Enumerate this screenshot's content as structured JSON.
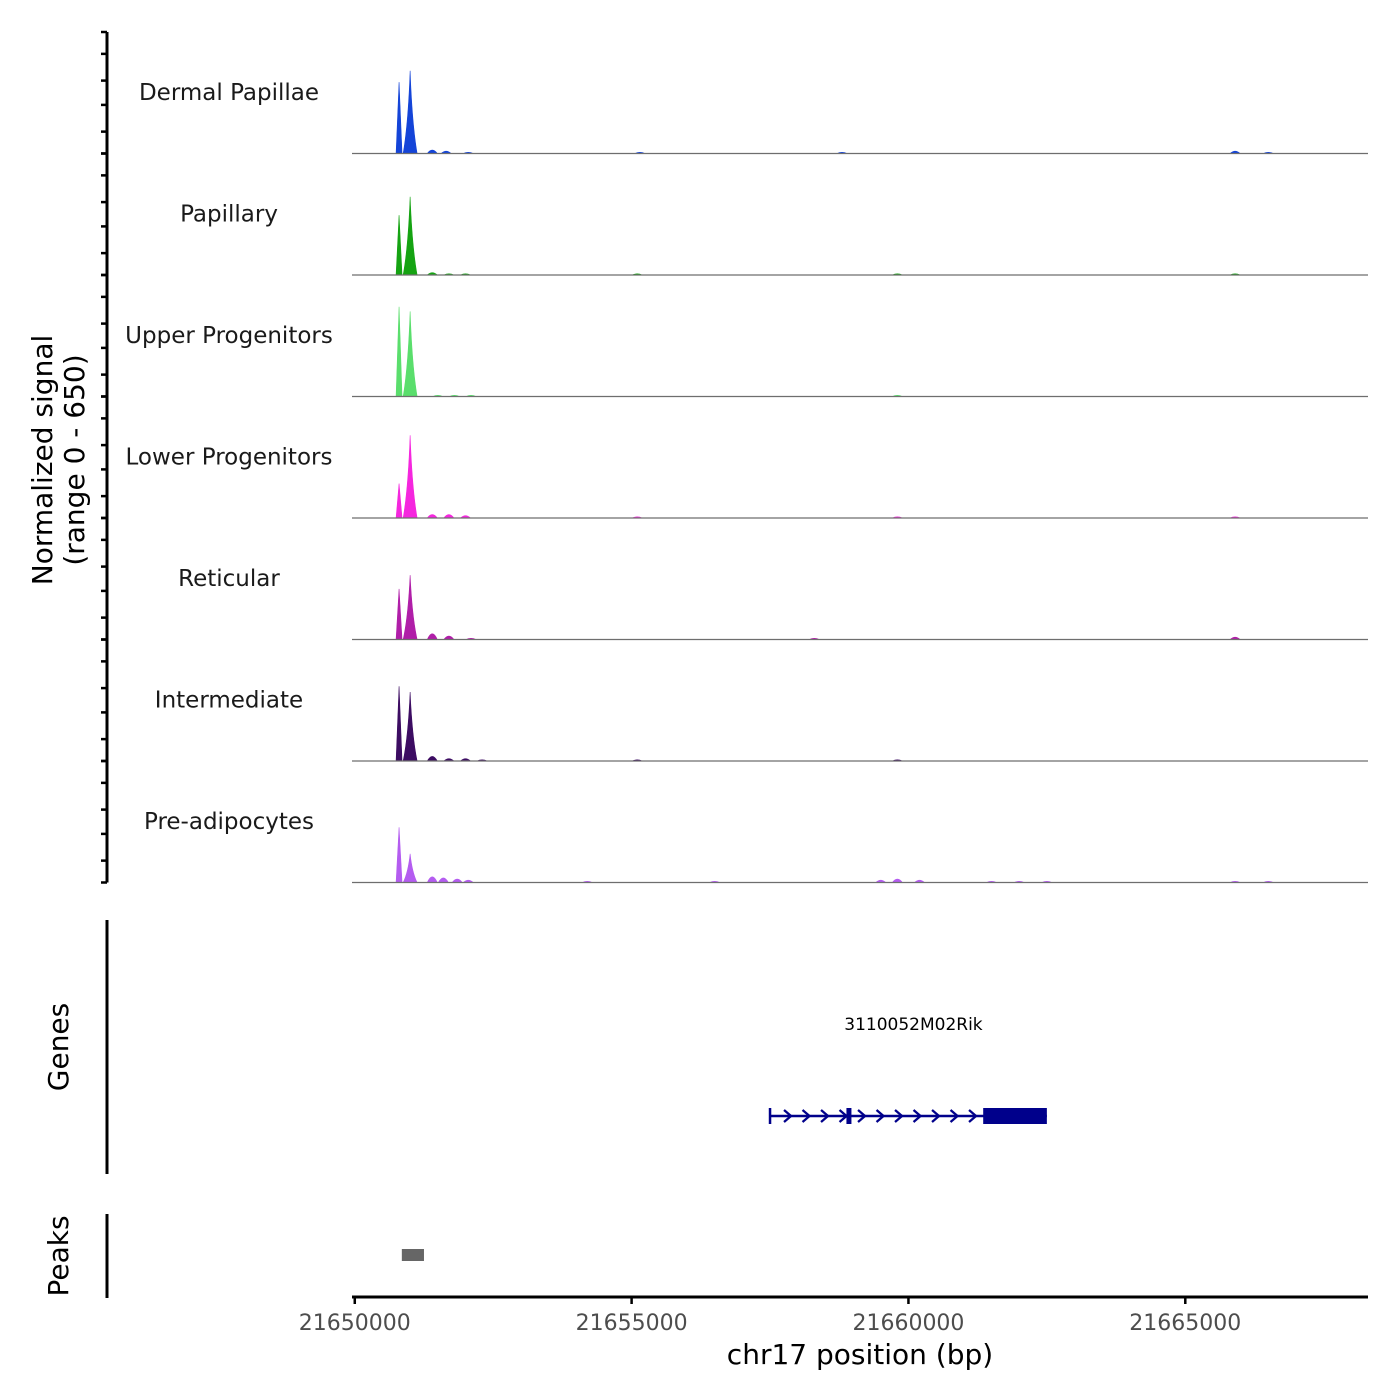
{
  "chart_data": {
    "type": "area",
    "chromosome": "chr17",
    "xlabel": "chr17 position (bp)",
    "ylabel": [
      "Normalized signal",
      "(range 0 - 650)"
    ],
    "signal_range": [
      0,
      650
    ],
    "xlim": [
      21649950,
      21668300
    ],
    "x_ticks": [
      21650000,
      21655000,
      21660000,
      21665000
    ],
    "x_tick_labels": [
      "21650000",
      "21655000",
      "21660000",
      "21665000"
    ],
    "tracks": [
      {
        "name": "Dermal Papillae",
        "color": "#1444d8",
        "peaks": [
          [
            21650800,
            0.62
          ],
          [
            21651000,
            0.72
          ],
          [
            21651400,
            0.03
          ],
          [
            21651650,
            0.02
          ],
          [
            21652050,
            0.01
          ],
          [
            21655150,
            0.01
          ],
          [
            21658800,
            0.01
          ],
          [
            21665900,
            0.02
          ],
          [
            21666500,
            0.01
          ]
        ]
      },
      {
        "name": "Papillary",
        "color": "#15a312",
        "peaks": [
          [
            21650800,
            0.52
          ],
          [
            21651000,
            0.68
          ],
          [
            21651400,
            0.02
          ],
          [
            21651700,
            0.01
          ],
          [
            21652000,
            0.01
          ],
          [
            21655100,
            0.01
          ],
          [
            21659800,
            0.01
          ],
          [
            21665900,
            0.01
          ]
        ]
      },
      {
        "name": "Upper Progenitors",
        "color": "#5ade6c",
        "peaks": [
          [
            21650800,
            0.78
          ],
          [
            21651000,
            0.74
          ],
          [
            21651500,
            0.01
          ],
          [
            21651800,
            0.01
          ],
          [
            21652100,
            0.01
          ],
          [
            21659800,
            0.01
          ]
        ]
      },
      {
        "name": "Lower Progenitors",
        "color": "#f526de",
        "peaks": [
          [
            21650800,
            0.3
          ],
          [
            21651000,
            0.72
          ],
          [
            21651400,
            0.03
          ],
          [
            21651700,
            0.03
          ],
          [
            21652000,
            0.02
          ],
          [
            21655100,
            0.01
          ],
          [
            21659800,
            0.01
          ],
          [
            21665900,
            0.01
          ]
        ]
      },
      {
        "name": "Reticular",
        "color": "#b01ea8",
        "peaks": [
          [
            21650800,
            0.44
          ],
          [
            21651000,
            0.56
          ],
          [
            21651400,
            0.05
          ],
          [
            21651700,
            0.03
          ],
          [
            21652100,
            0.01
          ],
          [
            21658300,
            0.01
          ],
          [
            21665900,
            0.02
          ]
        ]
      },
      {
        "name": "Intermediate",
        "color": "#3c0c62",
        "peaks": [
          [
            21650800,
            0.65
          ],
          [
            21651000,
            0.6
          ],
          [
            21651400,
            0.04
          ],
          [
            21651700,
            0.02
          ],
          [
            21652000,
            0.02
          ],
          [
            21652300,
            0.01
          ],
          [
            21655100,
            0.01
          ],
          [
            21659800,
            0.01
          ]
        ]
      },
      {
        "name": "Pre-adipocytes",
        "color": "#b45cf0",
        "peaks": [
          [
            21650800,
            0.48
          ],
          [
            21651000,
            0.25
          ],
          [
            21651400,
            0.05
          ],
          [
            21651600,
            0.04
          ],
          [
            21651850,
            0.03
          ],
          [
            21652050,
            0.02
          ],
          [
            21654200,
            0.01
          ],
          [
            21656500,
            0.01
          ],
          [
            21659500,
            0.02
          ],
          [
            21659800,
            0.03
          ],
          [
            21660200,
            0.02
          ],
          [
            21661500,
            0.01
          ],
          [
            21662000,
            0.01
          ],
          [
            21662500,
            0.01
          ],
          [
            21665900,
            0.01
          ],
          [
            21666500,
            0.01
          ]
        ]
      }
    ],
    "genes_track_label": "Genes",
    "genes": [
      {
        "name": "3110052M02Rik",
        "color": "#00008b",
        "start": 21657500,
        "end": 21662500,
        "strand": "+",
        "exons": [
          [
            21658880,
            21658960
          ],
          [
            21661350,
            21662500
          ]
        ]
      }
    ],
    "peaks_track_label": "Peaks",
    "peak_color": "#666666",
    "peaks": [
      [
        21650850,
        21651250
      ]
    ]
  }
}
